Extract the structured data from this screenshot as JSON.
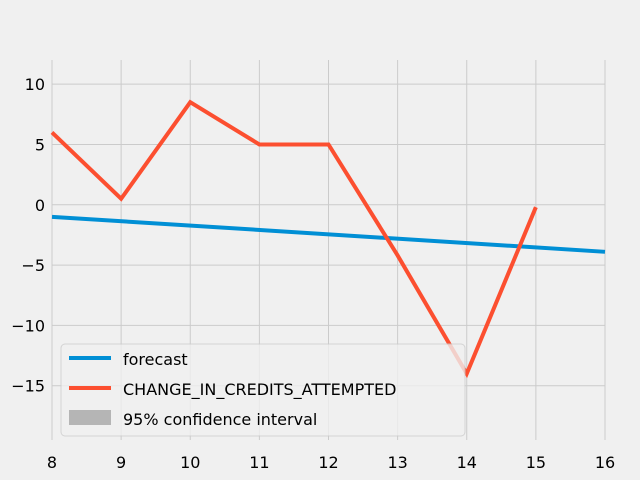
{
  "chart_data": {
    "type": "line",
    "title": "",
    "xlabel": "",
    "ylabel": "",
    "xlim": [
      8,
      16
    ],
    "ylim": [
      -19.5,
      12
    ],
    "grid": true,
    "x_ticks": [
      8,
      9,
      10,
      11,
      12,
      13,
      14,
      15,
      16
    ],
    "y_ticks": [
      -15,
      -10,
      -5,
      0,
      5,
      10
    ],
    "x_tick_labels": [
      "8",
      "9",
      "10",
      "11",
      "12",
      "13",
      "14",
      "15",
      "16"
    ],
    "y_tick_labels": [
      "−15",
      "−10",
      "−5",
      "0",
      "5",
      "10"
    ],
    "legend_position": "lower-left",
    "series": [
      {
        "name": "forecast",
        "color": "#008fd5",
        "x": [
          8,
          16
        ],
        "y": [
          -1.0,
          -3.9
        ]
      },
      {
        "name": "CHANGE_IN_CREDITS_ATTEMPTED",
        "color": "#fc4f30",
        "x": [
          8,
          9,
          10,
          11,
          12,
          13,
          14,
          15
        ],
        "y": [
          6.0,
          0.5,
          8.5,
          5.0,
          5.0,
          -4.2,
          -14.0,
          -0.2
        ]
      }
    ],
    "confidence_interval": {
      "name": "95% confidence interval",
      "color": "#b5b5b5"
    }
  }
}
